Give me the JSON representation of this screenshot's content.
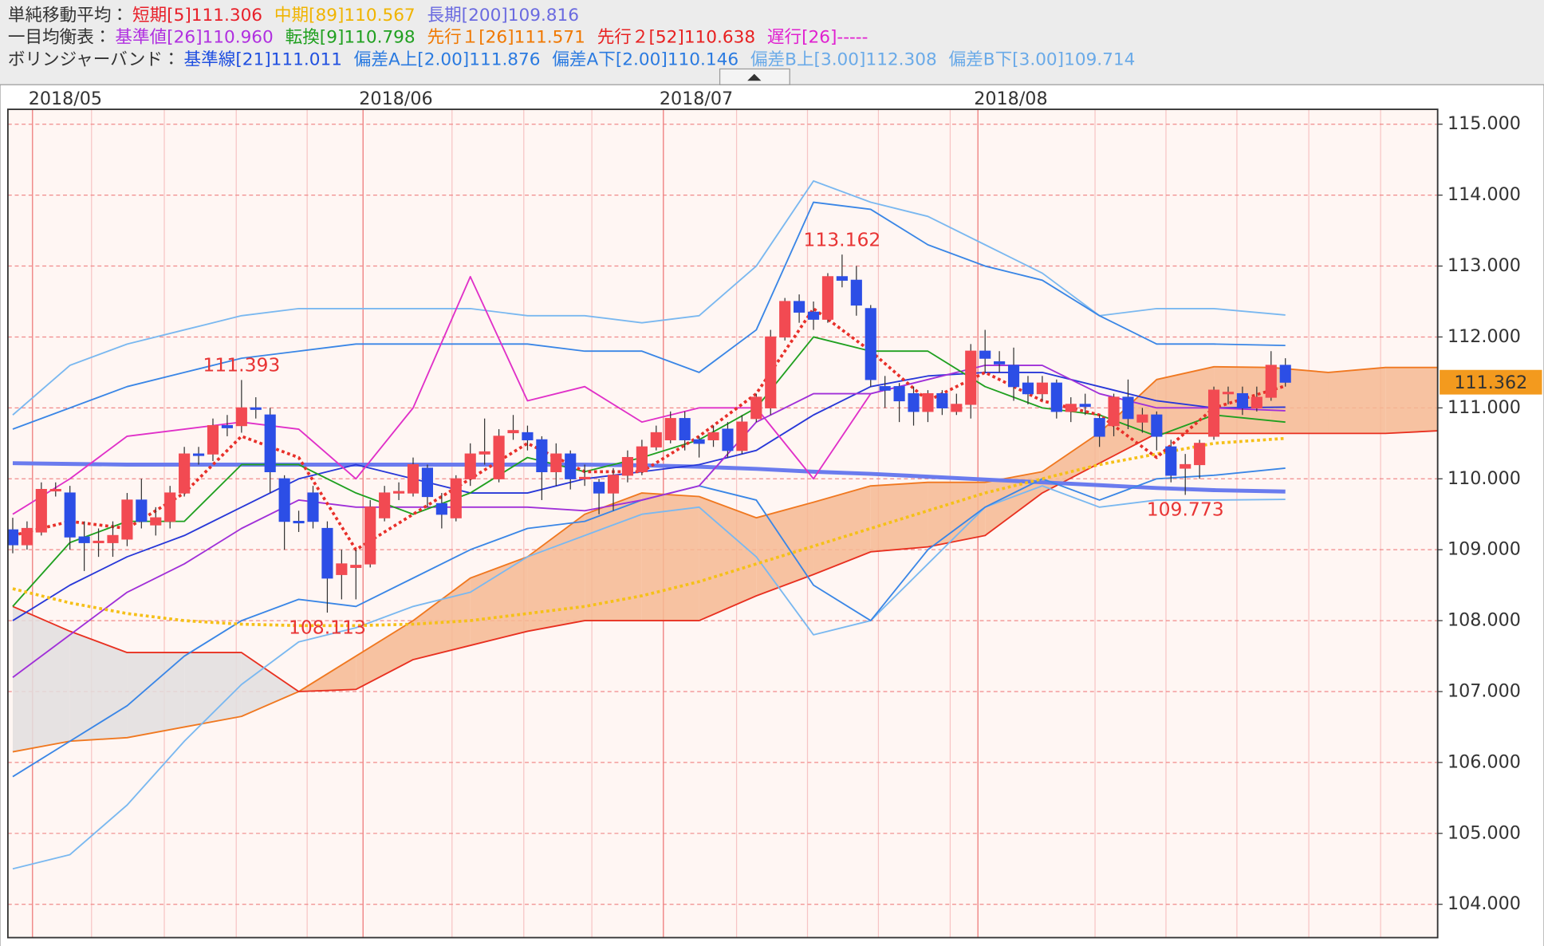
{
  "chart_data": {
    "type": "candlestick",
    "legend_rows": [
      {
        "label": "単純移動平均：",
        "items": [
          {
            "text": "短期[5]111.306",
            "color": "#e8202a"
          },
          {
            "text": "中期[89]110.567",
            "color": "#f0b400"
          },
          {
            "text": "長期[200]109.816",
            "color": "#6a6ae0"
          }
        ]
      },
      {
        "label": "一目均衡表：",
        "items": [
          {
            "text": "基準値[26]110.960",
            "color": "#b030e0"
          },
          {
            "text": "転換[9]110.798",
            "color": "#20a020"
          },
          {
            "text": "先行１[26]111.571",
            "color": "#f07800"
          },
          {
            "text": "先行２[52]110.638",
            "color": "#e82020"
          },
          {
            "text": "遅行[26]-----",
            "color": "#e020d0"
          }
        ]
      },
      {
        "label": "ボリンジャーバンド：",
        "items": [
          {
            "text": "基準線[21]111.011",
            "color": "#2050e0"
          },
          {
            "text": "偏差A上[2.00]111.876",
            "color": "#2a7ae0"
          },
          {
            "text": "偏差A下[2.00]110.146",
            "color": "#2a7ae0"
          },
          {
            "text": "偏差B上[3.00]112.308",
            "color": "#6aaae8"
          },
          {
            "text": "偏差B下[3.00]109.714",
            "color": "#6aaae8"
          }
        ]
      }
    ],
    "xlim": [
      -0.34,
      99.65
    ],
    "xticks": [
      {
        "value": 1.38,
        "label": "2018/05"
      },
      {
        "value": 24.5,
        "label": "2018/06"
      },
      {
        "value": 45.5,
        "label": "2018/07"
      },
      {
        "value": 67.5,
        "label": "2018/08"
      }
    ],
    "x_grid": [
      5.51,
      10.6,
      15.63,
      20.59,
      30.72,
      35.74,
      40.5,
      50.62,
      55.58,
      60.54,
      65.56,
      75.69,
      80.65,
      85.61,
      90.64,
      95.66
    ],
    "ylim": [
      103.53,
      115.21
    ],
    "yticks": [
      {
        "value": 104,
        "label": "104.000"
      },
      {
        "value": 105,
        "label": "105.000"
      },
      {
        "value": 106,
        "label": "106.000"
      },
      {
        "value": 107,
        "label": "107.000"
      },
      {
        "value": 108,
        "label": "108.000"
      },
      {
        "value": 109,
        "label": "109.000"
      },
      {
        "value": 110,
        "label": "110.000"
      },
      {
        "value": 111,
        "label": "111.000"
      },
      {
        "value": 112,
        "label": "112.000"
      },
      {
        "value": 113,
        "label": "113.000"
      },
      {
        "value": 114,
        "label": "114.000"
      },
      {
        "value": 115,
        "label": "115.000"
      }
    ],
    "grid": true,
    "up_color": "#f24a52",
    "down_color": "#2c4ee6",
    "open": [
      109.28,
      109.07,
      109.25,
      109.85,
      109.8,
      109.18,
      109.1,
      109.1,
      109.15,
      109.7,
      109.35,
      109.4,
      109.8,
      110.35,
      110.35,
      110.75,
      110.75,
      111.0,
      110.9,
      110.0,
      109.4,
      109.8,
      109.3,
      108.65,
      108.75,
      108.8,
      109.45,
      109.8,
      109.8,
      110.15,
      109.65,
      109.45,
      110.0,
      110.35,
      110.0,
      110.65,
      110.65,
      110.55,
      110.1,
      110.35,
      110.0,
      109.95,
      109.8,
      110.05,
      110.1,
      110.45,
      110.55,
      110.85,
      110.55,
      110.55,
      110.7,
      110.4,
      110.85,
      111.0,
      112.0,
      112.5,
      112.35,
      112.25,
      112.85,
      112.8,
      112.4,
      111.3,
      111.3,
      111.2,
      110.95,
      111.2,
      110.95,
      111.05,
      111.8,
      111.65,
      111.6,
      111.35,
      111.2,
      111.35,
      110.95,
      111.05,
      110.85,
      110.75,
      111.15,
      110.8,
      110.9,
      110.45,
      110.15,
      110.2,
      110.6,
      111.2,
      111.2,
      111.0,
      111.15,
      111.6
    ],
    "high": [
      109.45,
      109.4,
      109.95,
      109.95,
      109.9,
      109.4,
      109.3,
      109.4,
      109.8,
      110.0,
      109.6,
      109.9,
      110.45,
      110.45,
      110.85,
      110.9,
      111.393,
      111.15,
      111.0,
      110.05,
      109.55,
      109.9,
      109.4,
      109.0,
      109.0,
      109.7,
      109.9,
      109.95,
      110.3,
      110.2,
      109.8,
      110.05,
      110.5,
      110.85,
      110.7,
      110.9,
      110.75,
      110.6,
      110.5,
      110.4,
      110.2,
      110.0,
      110.15,
      110.4,
      110.55,
      110.75,
      110.95,
      110.95,
      110.6,
      110.75,
      110.8,
      110.9,
      111.2,
      112.1,
      112.55,
      112.6,
      112.5,
      112.9,
      113.162,
      113.0,
      112.45,
      111.45,
      111.35,
      111.3,
      111.25,
      111.25,
      111.2,
      111.9,
      112.1,
      111.8,
      111.85,
      111.45,
      111.45,
      111.4,
      111.15,
      111.2,
      110.9,
      111.2,
      111.4,
      111.0,
      110.95,
      110.55,
      110.35,
      110.55,
      111.3,
      111.3,
      111.3,
      111.3,
      111.8,
      111.7
    ],
    "low": [
      108.95,
      109.0,
      109.2,
      109.75,
      109.0,
      108.7,
      108.9,
      108.9,
      109.05,
      109.3,
      109.2,
      109.3,
      109.75,
      110.2,
      110.25,
      110.6,
      110.65,
      110.85,
      109.8,
      109.0,
      109.25,
      109.3,
      108.113,
      108.3,
      108.3,
      108.75,
      109.4,
      109.7,
      109.75,
      109.6,
      109.3,
      109.4,
      109.9,
      110.2,
      109.95,
      110.55,
      110.4,
      109.7,
      109.9,
      109.85,
      109.9,
      109.5,
      109.55,
      109.95,
      110.05,
      110.4,
      110.5,
      110.4,
      110.3,
      110.45,
      110.3,
      110.35,
      110.8,
      110.9,
      111.95,
      112.2,
      112.1,
      112.2,
      112.7,
      112.3,
      111.3,
      111.0,
      110.8,
      110.75,
      110.8,
      110.9,
      110.9,
      110.85,
      111.5,
      111.5,
      111.1,
      111.05,
      111.1,
      110.85,
      110.8,
      110.9,
      110.45,
      110.6,
      110.7,
      110.65,
      110.4,
      109.95,
      109.773,
      110.0,
      110.55,
      111.05,
      110.9,
      110.95,
      111.1,
      111.3
    ],
    "close": [
      109.07,
      109.3,
      109.85,
      109.85,
      109.18,
      109.1,
      109.12,
      109.2,
      109.7,
      109.4,
      109.45,
      109.8,
      110.35,
      110.33,
      110.75,
      110.72,
      111.0,
      110.98,
      110.1,
      109.4,
      109.38,
      109.4,
      108.6,
      108.8,
      108.78,
      109.6,
      109.8,
      109.82,
      110.2,
      109.75,
      109.5,
      110.0,
      110.35,
      110.38,
      110.6,
      110.68,
      110.55,
      110.1,
      110.35,
      110.0,
      110.02,
      109.8,
      110.05,
      110.3,
      110.45,
      110.65,
      110.85,
      110.55,
      110.5,
      110.65,
      110.4,
      110.8,
      111.15,
      112.0,
      112.5,
      112.35,
      112.25,
      112.85,
      112.8,
      112.45,
      111.4,
      111.25,
      111.1,
      110.95,
      111.2,
      111.0,
      111.05,
      111.8,
      111.7,
      111.62,
      111.3,
      111.2,
      111.35,
      110.95,
      111.05,
      111.02,
      110.6,
      111.15,
      110.85,
      110.9,
      110.6,
      110.05,
      110.2,
      110.5,
      111.25,
      111.22,
      111.0,
      111.15,
      111.6,
      111.362
    ],
    "annotations": [
      111.393,
      108.113,
      113.162,
      109.773
    ],
    "last_price": 111.362,
    "last_price_color": "#f39a1e",
    "cloud": {
      "x": [
        0,
        4,
        8,
        12,
        16,
        20,
        24,
        28,
        32,
        36,
        40,
        44,
        48,
        52,
        56,
        60,
        64,
        68,
        72,
        76,
        80,
        84,
        88,
        92,
        96,
        100
      ],
      "span_a": [
        106.15,
        106.3,
        106.35,
        106.5,
        106.65,
        107.0,
        107.5,
        108.0,
        108.6,
        108.9,
        109.5,
        109.8,
        109.75,
        109.45,
        109.67,
        109.9,
        109.95,
        109.95,
        110.1,
        110.65,
        111.4,
        111.58,
        111.57,
        111.5,
        111.57,
        111.57
      ],
      "span_b": [
        108.2,
        107.85,
        107.55,
        107.55,
        107.55,
        107.0,
        107.03,
        107.45,
        107.65,
        107.85,
        108.0,
        108.0,
        108.0,
        108.35,
        108.65,
        108.97,
        109.04,
        109.2,
        109.8,
        110.22,
        110.64,
        110.64,
        110.64,
        110.64,
        110.64,
        110.68
      ],
      "color_a": "#f07820",
      "color_b": "#e83020",
      "up_fill": "#f6b992",
      "down_fill": "#e2dede"
    },
    "series": [
      {
        "color": "#6a7bee",
        "width": 4,
        "style": "solid",
        "x": [
          0,
          4,
          8,
          12,
          16,
          20,
          24,
          28,
          32,
          36,
          40,
          44,
          48,
          52,
          56,
          60,
          64,
          68,
          72,
          76,
          80,
          84,
          89
        ],
        "values": [
          110.22,
          110.21,
          110.2,
          110.2,
          110.2,
          110.2,
          110.2,
          110.2,
          110.2,
          110.2,
          110.2,
          110.19,
          110.17,
          110.14,
          110.1,
          110.07,
          110.03,
          109.99,
          109.95,
          109.91,
          109.87,
          109.84,
          109.82
        ]
      },
      {
        "color": "#7ab8f0",
        "width": 1.5,
        "style": "solid",
        "x": [
          0,
          4,
          8,
          12,
          16,
          20,
          24,
          28,
          32,
          36,
          40,
          44,
          48,
          52,
          56,
          60,
          64,
          68,
          72,
          76,
          80,
          84,
          89
        ],
        "values": [
          110.9,
          111.6,
          111.9,
          112.1,
          112.3,
          112.4,
          112.4,
          112.4,
          112.4,
          112.3,
          112.3,
          112.2,
          112.3,
          113.0,
          114.2,
          113.9,
          113.7,
          113.3,
          112.9,
          112.3,
          112.4,
          112.4,
          112.31
        ]
      },
      {
        "color": "#7ab8f0",
        "width": 1.5,
        "style": "solid",
        "x": [
          0,
          4,
          8,
          12,
          16,
          20,
          24,
          28,
          32,
          36,
          40,
          44,
          48,
          52,
          56,
          60,
          64,
          68,
          72,
          76,
          80,
          84,
          89
        ],
        "values": [
          104.5,
          104.7,
          105.4,
          106.3,
          107.1,
          107.7,
          107.9,
          108.2,
          108.4,
          108.9,
          109.2,
          109.5,
          109.6,
          108.9,
          107.8,
          108.0,
          108.8,
          109.6,
          109.9,
          109.6,
          109.7,
          109.7,
          109.71
        ]
      },
      {
        "color": "#3a86e6",
        "width": 1.5,
        "style": "solid",
        "x": [
          0,
          4,
          8,
          12,
          16,
          20,
          24,
          28,
          32,
          36,
          40,
          44,
          48,
          52,
          56,
          60,
          64,
          68,
          72,
          76,
          80,
          84,
          89
        ],
        "values": [
          110.7,
          111.0,
          111.3,
          111.5,
          111.7,
          111.8,
          111.9,
          111.9,
          111.9,
          111.9,
          111.8,
          111.8,
          111.5,
          112.1,
          113.9,
          113.8,
          113.3,
          113.0,
          112.8,
          112.3,
          111.9,
          111.9,
          111.88
        ]
      },
      {
        "color": "#3a86e6",
        "width": 1.5,
        "style": "solid",
        "x": [
          0,
          4,
          8,
          12,
          16,
          20,
          24,
          28,
          32,
          36,
          40,
          44,
          48,
          52,
          56,
          60,
          64,
          68,
          72,
          76,
          80,
          84,
          89
        ],
        "values": [
          105.8,
          106.3,
          106.8,
          107.5,
          108.0,
          108.3,
          108.2,
          108.6,
          109.0,
          109.3,
          109.4,
          109.7,
          109.9,
          109.7,
          108.5,
          108.0,
          109.0,
          109.6,
          110.0,
          109.7,
          110.0,
          110.05,
          110.15
        ]
      },
      {
        "color": "#2838d8",
        "width": 1.5,
        "style": "solid",
        "x": [
          0,
          4,
          8,
          12,
          16,
          20,
          24,
          28,
          32,
          36,
          40,
          44,
          48,
          52,
          56,
          60,
          64,
          68,
          72,
          76,
          80,
          84,
          89
        ],
        "values": [
          108.0,
          108.5,
          108.9,
          109.2,
          109.6,
          110.0,
          110.2,
          110.0,
          109.8,
          109.8,
          110.0,
          110.1,
          110.2,
          110.4,
          110.9,
          111.3,
          111.45,
          111.5,
          111.5,
          111.3,
          111.1,
          111.0,
          111.01
        ]
      },
      {
        "color": "#e030c8",
        "width": 1.5,
        "style": "solid",
        "x": [
          0,
          4,
          8,
          12,
          16,
          20,
          24,
          28,
          32,
          36,
          40,
          44,
          48,
          52,
          56,
          60
        ],
        "values": [
          109.5,
          110.0,
          110.6,
          110.7,
          110.8,
          110.7,
          110.0,
          111.0,
          112.85,
          111.1,
          111.3,
          110.8,
          111.0,
          111.0,
          110.0,
          111.2
        ]
      },
      {
        "color": "#a030d8",
        "width": 1.5,
        "style": "solid",
        "x": [
          0,
          4,
          8,
          12,
          16,
          20,
          24,
          28,
          32,
          36,
          40,
          44,
          48,
          52,
          56,
          60,
          64,
          68,
          72,
          76,
          80,
          84,
          89
        ],
        "values": [
          107.2,
          107.8,
          108.4,
          108.8,
          109.3,
          109.7,
          109.6,
          109.6,
          109.6,
          109.6,
          109.55,
          109.7,
          109.9,
          110.8,
          111.2,
          111.2,
          111.4,
          111.6,
          111.6,
          111.2,
          111.0,
          111.0,
          110.96
        ]
      },
      {
        "color": "#20a020",
        "width": 1.5,
        "style": "solid",
        "x": [
          0,
          4,
          8,
          12,
          16,
          20,
          24,
          28,
          32,
          36,
          40,
          44,
          48,
          52,
          56,
          60,
          64,
          68,
          72,
          76,
          80,
          84,
          89
        ],
        "values": [
          108.2,
          109.1,
          109.4,
          109.4,
          110.2,
          110.2,
          109.8,
          109.5,
          109.8,
          110.3,
          110.1,
          110.3,
          110.55,
          111.0,
          112.0,
          111.8,
          111.8,
          111.3,
          111.0,
          110.9,
          110.6,
          110.9,
          110.8
        ]
      },
      {
        "color": "#f5c018",
        "width": 3,
        "style": "dotted",
        "x": [
          0,
          4,
          8,
          12,
          16,
          20,
          24,
          28,
          32,
          36,
          40,
          44,
          48,
          52,
          56,
          60,
          64,
          68,
          72,
          76,
          80,
          84,
          89
        ],
        "values": [
          108.45,
          108.25,
          108.1,
          108.0,
          107.95,
          107.93,
          107.93,
          107.95,
          108.0,
          108.1,
          108.2,
          108.35,
          108.55,
          108.8,
          109.05,
          109.3,
          109.55,
          109.8,
          110.0,
          110.2,
          110.35,
          110.5,
          110.57
        ]
      },
      {
        "color": "#e8302a",
        "width": 3,
        "style": "dotted",
        "x": [
          0,
          4,
          8,
          12,
          16,
          20,
          24,
          28,
          32,
          36,
          40,
          44,
          48,
          52,
          56,
          60,
          64,
          68,
          72,
          76,
          80,
          84,
          89
        ],
        "values": [
          109.2,
          109.4,
          109.3,
          109.8,
          110.6,
          110.3,
          109.0,
          109.5,
          110.0,
          110.5,
          110.1,
          110.1,
          110.6,
          111.2,
          112.4,
          111.8,
          111.1,
          111.5,
          111.1,
          110.9,
          110.3,
          111.0,
          111.31
        ]
      }
    ]
  }
}
